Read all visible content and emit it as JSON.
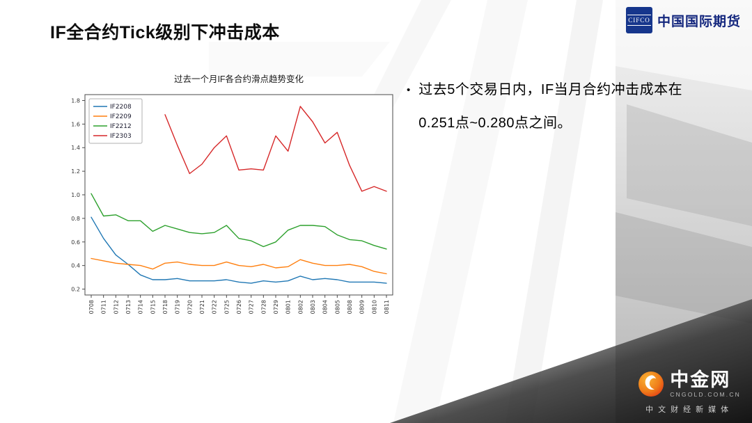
{
  "slide": {
    "title": "IF全合约Tick级别下冲击成本",
    "bullet": {
      "marker": "•",
      "line1": "过去5个交易日内，IF当月合约冲击成本在",
      "line2": "0.251点~0.280点之间。"
    }
  },
  "header_logo": {
    "box_text": "CIFCO",
    "name": "中国国际期货",
    "brand_blue": "#16368c"
  },
  "footer_logo": {
    "name": "中金网",
    "domain": "CNGOLD.COM.CN",
    "tagline": "中文财经新媒体",
    "flame_colors": [
      "#f7a823",
      "#e8381d"
    ]
  },
  "chart_data": {
    "type": "line",
    "title": "过去一个月IF各合约滑点趋势变化",
    "categories": [
      "0708",
      "0711",
      "0712",
      "0713",
      "0714",
      "0715",
      "0718",
      "0719",
      "0720",
      "0721",
      "0722",
      "0725",
      "0726",
      "0727",
      "0728",
      "0729",
      "0801",
      "0802",
      "0803",
      "0804",
      "0805",
      "0808",
      "0809",
      "0810",
      "0811"
    ],
    "series": [
      {
        "name": "IF2208",
        "color": "#1f77b4",
        "values": [
          0.81,
          0.63,
          0.49,
          0.41,
          0.32,
          0.28,
          0.28,
          0.29,
          0.27,
          0.27,
          0.27,
          0.28,
          0.26,
          0.25,
          0.27,
          0.26,
          0.27,
          0.31,
          0.28,
          0.29,
          0.28,
          0.26,
          0.26,
          0.26,
          0.25
        ]
      },
      {
        "name": "IF2209",
        "color": "#ff7f0e",
        "values": [
          0.46,
          0.44,
          0.42,
          0.41,
          0.4,
          0.37,
          0.42,
          0.43,
          0.41,
          0.4,
          0.4,
          0.43,
          0.4,
          0.39,
          0.41,
          0.38,
          0.39,
          0.45,
          0.42,
          0.4,
          0.4,
          0.41,
          0.39,
          0.35,
          0.33
        ]
      },
      {
        "name": "IF2212",
        "color": "#2ca02c",
        "values": [
          1.01,
          0.82,
          0.83,
          0.78,
          0.78,
          0.69,
          0.74,
          0.71,
          0.68,
          0.67,
          0.68,
          0.74,
          0.63,
          0.61,
          0.56,
          0.6,
          0.7,
          0.74,
          0.74,
          0.73,
          0.66,
          0.62,
          0.61,
          0.57,
          0.54
        ]
      },
      {
        "name": "IF2303",
        "color": "#d62728",
        "values": [
          null,
          null,
          null,
          null,
          null,
          null,
          1.68,
          1.42,
          1.18,
          1.26,
          1.4,
          1.5,
          1.21,
          1.22,
          1.21,
          1.5,
          1.37,
          1.75,
          1.62,
          1.44,
          1.53,
          1.25,
          1.03,
          1.07,
          1.03
        ]
      }
    ],
    "ylim": [
      0.15,
      1.85
    ],
    "yticks": [
      0.2,
      0.4,
      0.6,
      0.8,
      1.0,
      1.2,
      1.4,
      1.6,
      1.8
    ],
    "legend_position": "upper left",
    "grid": false,
    "xlabel": "",
    "ylabel": ""
  }
}
